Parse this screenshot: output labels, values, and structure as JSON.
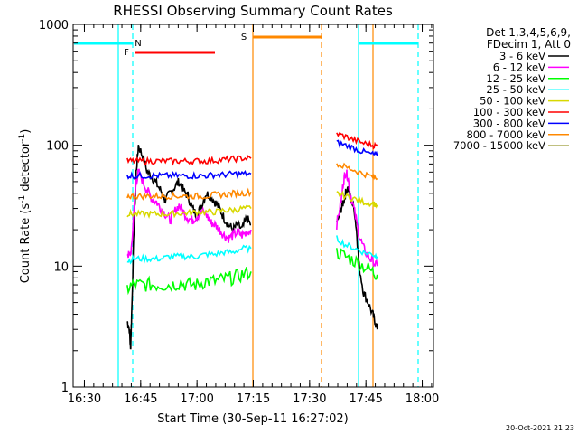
{
  "chart_data": {
    "type": "line",
    "title": "RHESSI Observing Summary Count Rates",
    "xlabel": "Start Time (30-Sep-11 16:27:02)",
    "ylabel_main": "Count Rate (s",
    "ylabel_exp1": "-1",
    "ylabel_mid": " detector",
    "ylabel_exp2": "-1",
    "ylabel_end": ")",
    "yscale": "log",
    "ylim": [
      1,
      1000
    ],
    "xlim_minutes": [
      16.45,
      18.05
    ],
    "x_ticks": [
      {
        "label": "16:30",
        "value": 16.5
      },
      {
        "label": "16:45",
        "value": 16.75
      },
      {
        "label": "17:00",
        "value": 17.0
      },
      {
        "label": "17:15",
        "value": 17.25
      },
      {
        "label": "17:30",
        "value": 17.5
      },
      {
        "label": "17:45",
        "value": 17.75
      },
      {
        "label": "18:00",
        "value": 18.0
      }
    ],
    "y_ticks": [
      {
        "label": "1",
        "value": 1
      },
      {
        "label": "10",
        "value": 10
      },
      {
        "label": "100",
        "value": 100
      },
      {
        "label": "1000",
        "value": 1000
      }
    ],
    "legend_header": [
      "Det 1,3,4,5,6,9,",
      "FDecim 1, Att 0"
    ],
    "legend_position": "right",
    "series": [
      {
        "name": "3 - 6 keV",
        "color": "#000000",
        "seg1": [
          [
            16.69,
            3.5
          ],
          [
            16.7,
            3
          ],
          [
            16.705,
            2
          ],
          [
            16.71,
            4
          ],
          [
            16.72,
            20
          ],
          [
            16.73,
            60
          ],
          [
            16.74,
            100
          ],
          [
            16.76,
            80
          ],
          [
            16.78,
            60
          ],
          [
            16.8,
            55
          ],
          [
            16.82,
            48
          ],
          [
            16.84,
            42
          ],
          [
            16.86,
            35
          ],
          [
            16.88,
            40
          ],
          [
            16.9,
            45
          ],
          [
            16.92,
            50
          ],
          [
            16.94,
            42
          ],
          [
            16.96,
            38
          ],
          [
            16.98,
            30
          ],
          [
            17.0,
            26
          ],
          [
            17.02,
            32
          ],
          [
            17.04,
            40
          ],
          [
            17.06,
            38
          ],
          [
            17.08,
            34
          ],
          [
            17.1,
            30
          ],
          [
            17.12,
            25
          ],
          [
            17.14,
            22
          ],
          [
            17.16,
            20
          ],
          [
            17.18,
            22
          ],
          [
            17.2,
            20
          ],
          [
            17.22,
            25
          ],
          [
            17.24,
            22
          ]
        ],
        "seg2": [
          [
            17.62,
            22
          ],
          [
            17.64,
            30
          ],
          [
            17.65,
            34
          ],
          [
            17.66,
            40
          ],
          [
            17.67,
            45
          ],
          [
            17.68,
            38
          ],
          [
            17.7,
            28
          ],
          [
            17.71,
            18
          ],
          [
            17.72,
            10
          ],
          [
            17.74,
            6
          ],
          [
            17.76,
            5
          ],
          [
            17.78,
            4
          ],
          [
            17.79,
            3.5
          ],
          [
            17.8,
            3
          ]
        ]
      },
      {
        "name": "6 - 12 keV",
        "color": "#ff00ff",
        "seg1": [
          [
            16.69,
            13
          ],
          [
            16.7,
            12
          ],
          [
            16.71,
            14
          ],
          [
            16.72,
            30
          ],
          [
            16.73,
            50
          ],
          [
            16.74,
            60
          ],
          [
            16.76,
            50
          ],
          [
            16.78,
            42
          ],
          [
            16.8,
            36
          ],
          [
            16.82,
            34
          ],
          [
            16.84,
            30
          ],
          [
            16.86,
            27
          ],
          [
            16.88,
            24
          ],
          [
            16.9,
            28
          ],
          [
            16.92,
            32
          ],
          [
            16.94,
            28
          ],
          [
            16.96,
            25
          ],
          [
            16.98,
            24
          ],
          [
            17.0,
            26
          ],
          [
            17.02,
            28
          ],
          [
            17.04,
            27
          ],
          [
            17.06,
            23
          ],
          [
            17.08,
            22
          ],
          [
            17.1,
            20
          ],
          [
            17.12,
            18
          ],
          [
            17.14,
            17
          ],
          [
            17.16,
            18
          ],
          [
            17.18,
            19
          ],
          [
            17.2,
            18
          ],
          [
            17.22,
            19
          ],
          [
            17.24,
            20
          ]
        ],
        "seg2": [
          [
            17.62,
            22
          ],
          [
            17.64,
            35
          ],
          [
            17.65,
            50
          ],
          [
            17.66,
            60
          ],
          [
            17.67,
            55
          ],
          [
            17.68,
            40
          ],
          [
            17.7,
            28
          ],
          [
            17.72,
            18
          ],
          [
            17.74,
            14
          ],
          [
            17.76,
            12
          ],
          [
            17.78,
            11
          ],
          [
            17.8,
            10
          ]
        ]
      },
      {
        "name": "12 - 25 keV",
        "color": "#00ff00",
        "seg1": [
          [
            16.69,
            6.5
          ],
          [
            16.72,
            7
          ],
          [
            16.76,
            7
          ],
          [
            16.8,
            7
          ],
          [
            16.84,
            7
          ],
          [
            16.88,
            7
          ],
          [
            16.92,
            7.2
          ],
          [
            16.96,
            7
          ],
          [
            17.0,
            7
          ],
          [
            17.04,
            7.5
          ],
          [
            17.08,
            7.5
          ],
          [
            17.12,
            7.8
          ],
          [
            17.16,
            8
          ],
          [
            17.2,
            8.5
          ],
          [
            17.24,
            9
          ]
        ],
        "seg2": [
          [
            17.62,
            13
          ],
          [
            17.66,
            12
          ],
          [
            17.7,
            11
          ],
          [
            17.74,
            10
          ],
          [
            17.78,
            9
          ],
          [
            17.8,
            8.5
          ]
        ]
      },
      {
        "name": "25 - 50 keV",
        "color": "#00ffff",
        "seg1": [
          [
            16.69,
            11
          ],
          [
            16.72,
            11.5
          ],
          [
            16.76,
            11.5
          ],
          [
            16.8,
            11.5
          ],
          [
            16.84,
            11.5
          ],
          [
            16.88,
            12
          ],
          [
            16.92,
            12
          ],
          [
            16.96,
            12
          ],
          [
            17.0,
            12
          ],
          [
            17.04,
            12.5
          ],
          [
            17.08,
            12.5
          ],
          [
            17.12,
            13
          ],
          [
            17.16,
            13
          ],
          [
            17.2,
            14
          ],
          [
            17.24,
            14
          ]
        ],
        "seg2": [
          [
            17.62,
            17
          ],
          [
            17.66,
            15
          ],
          [
            17.7,
            14
          ],
          [
            17.74,
            13
          ],
          [
            17.78,
            12.5
          ],
          [
            17.8,
            12
          ]
        ]
      },
      {
        "name": "50 - 100 keV",
        "color": "#d8d800",
        "seg1": [
          [
            16.69,
            27
          ],
          [
            16.72,
            27
          ],
          [
            16.76,
            27
          ],
          [
            16.8,
            27
          ],
          [
            16.84,
            27
          ],
          [
            16.88,
            27
          ],
          [
            16.92,
            27.5
          ],
          [
            16.96,
            27.5
          ],
          [
            17.0,
            28
          ],
          [
            17.04,
            28
          ],
          [
            17.08,
            28
          ],
          [
            17.12,
            29
          ],
          [
            17.16,
            29
          ],
          [
            17.2,
            30
          ],
          [
            17.24,
            30
          ]
        ],
        "seg2": [
          [
            17.62,
            40
          ],
          [
            17.66,
            38
          ],
          [
            17.7,
            36
          ],
          [
            17.74,
            34
          ],
          [
            17.78,
            33
          ],
          [
            17.8,
            32
          ]
        ]
      },
      {
        "name": "100 - 300 keV",
        "color": "#ff0000",
        "seg1": [
          [
            16.69,
            74
          ],
          [
            16.72,
            74
          ],
          [
            16.76,
            74
          ],
          [
            16.8,
            74
          ],
          [
            16.84,
            74
          ],
          [
            16.88,
            74
          ],
          [
            16.92,
            74
          ],
          [
            16.96,
            74
          ],
          [
            17.0,
            74
          ],
          [
            17.04,
            74
          ],
          [
            17.08,
            75
          ],
          [
            17.12,
            76
          ],
          [
            17.16,
            77
          ],
          [
            17.2,
            78
          ],
          [
            17.24,
            78
          ]
        ],
        "seg2": [
          [
            17.62,
            125
          ],
          [
            17.66,
            118
          ],
          [
            17.7,
            110
          ],
          [
            17.74,
            104
          ],
          [
            17.78,
            100
          ],
          [
            17.8,
            98
          ]
        ]
      },
      {
        "name": "300 - 800 keV",
        "color": "#0000ff",
        "seg1": [
          [
            16.69,
            56
          ],
          [
            16.72,
            56
          ],
          [
            16.76,
            56
          ],
          [
            16.8,
            56
          ],
          [
            16.84,
            56
          ],
          [
            16.88,
            56
          ],
          [
            16.92,
            56
          ],
          [
            16.96,
            56
          ],
          [
            17.0,
            56
          ],
          [
            17.04,
            56
          ],
          [
            17.08,
            57
          ],
          [
            17.12,
            57
          ],
          [
            17.16,
            58
          ],
          [
            17.2,
            58
          ],
          [
            17.24,
            58
          ]
        ],
        "seg2": [
          [
            17.62,
            105
          ],
          [
            17.66,
            100
          ],
          [
            17.7,
            94
          ],
          [
            17.74,
            88
          ],
          [
            17.78,
            84
          ],
          [
            17.8,
            82
          ]
        ]
      },
      {
        "name": "800 - 7000 keV",
        "color": "#ff8800",
        "seg1": [
          [
            16.69,
            38
          ],
          [
            16.72,
            38
          ],
          [
            16.76,
            38
          ],
          [
            16.8,
            38
          ],
          [
            16.84,
            38
          ],
          [
            16.88,
            38
          ],
          [
            16.92,
            38
          ],
          [
            16.96,
            38
          ],
          [
            17.0,
            38
          ],
          [
            17.04,
            38
          ],
          [
            17.08,
            39
          ],
          [
            17.12,
            39
          ],
          [
            17.16,
            40
          ],
          [
            17.2,
            40
          ],
          [
            17.24,
            41
          ]
        ],
        "seg2": [
          [
            17.62,
            70
          ],
          [
            17.66,
            66
          ],
          [
            17.7,
            62
          ],
          [
            17.74,
            58
          ],
          [
            17.78,
            55
          ],
          [
            17.8,
            53
          ]
        ]
      },
      {
        "name": "7000 - 15000 keV",
        "color": "#808000",
        "seg1": [],
        "seg2": []
      }
    ],
    "flags": [
      {
        "label": "N",
        "color": "#00ffff",
        "value_x": 16.745
      },
      {
        "label": "F",
        "color": "#ff0000",
        "value_x": 16.745
      },
      {
        "label": "S",
        "color": "#ff8800",
        "value_x": 17.275
      }
    ],
    "footer_date": "20-Oct-2021 21:23"
  }
}
